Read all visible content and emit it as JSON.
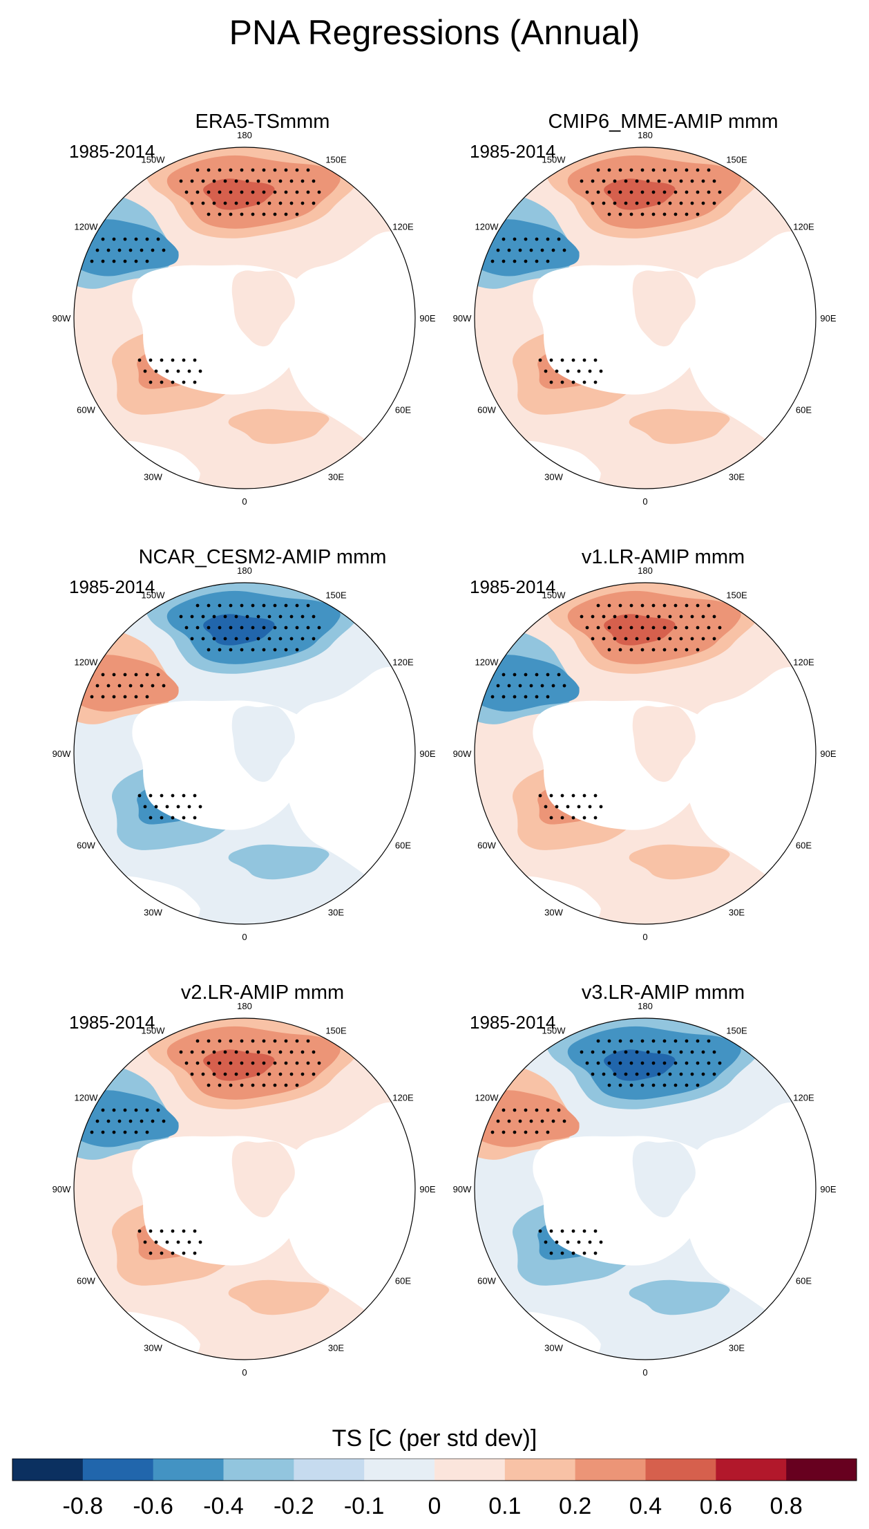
{
  "title": "PNA Regressions (Annual)",
  "chart_data": {
    "type": "heatmap",
    "projection": "north polar stereographic",
    "variable": "TS",
    "panels": [
      {
        "title": "ERA5-TSmmm",
        "period": "1985-2014",
        "pattern": "positive"
      },
      {
        "title": "CMIP6_MME-AMIP  mmm",
        "period": "1985-2014",
        "pattern": "positive"
      },
      {
        "title": "NCAR_CESM2-AMIP  mmm",
        "period": "1985-2014",
        "pattern": "negative"
      },
      {
        "title": "v1.LR-AMIP  mmm",
        "period": "1985-2014",
        "pattern": "positive"
      },
      {
        "title": "v2.LR-AMIP  mmm",
        "period": "1985-2014",
        "pattern": "positive"
      },
      {
        "title": "v3.LR-AMIP  mmm",
        "period": "1985-2014",
        "pattern": "negative"
      }
    ],
    "longitude_labels": [
      "180",
      "150E",
      "120E",
      "90E",
      "60E",
      "30E",
      "0",
      "30W",
      "60W",
      "90W",
      "120W",
      "150W"
    ],
    "colorbar": {
      "title": "TS [C (per std dev)]",
      "ticks": [
        "-0.8",
        "-0.6",
        "-0.4",
        "-0.2",
        "-0.1",
        "0",
        "0.1",
        "0.2",
        "0.4",
        "0.6",
        "0.8"
      ],
      "colors": [
        "#0b3060",
        "#2166ac",
        "#4393c3",
        "#92c5de",
        "#c6dbef",
        "#e6eef5",
        "#fbe5dc",
        "#f8c2a6",
        "#ec9577",
        "#d6604d",
        "#b2182b",
        "#67001f"
      ]
    }
  }
}
